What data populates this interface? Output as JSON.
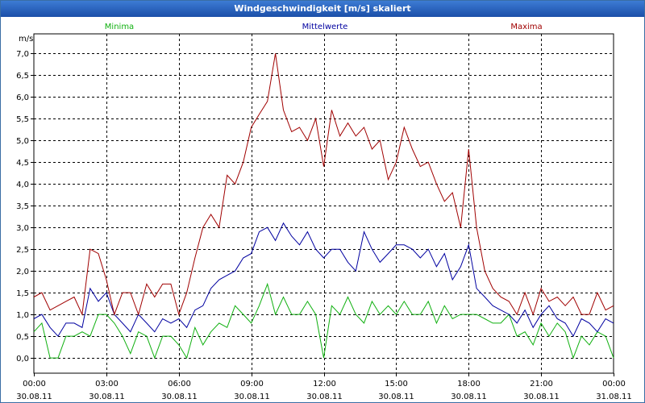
{
  "window": {
    "title": "Windgeschwindigkeit [m/s] skaliert"
  },
  "chart_data": {
    "type": "line",
    "title": "Windgeschwindigkeit [m/s] skaliert",
    "ylabel": "m/s",
    "ylim": [
      -0.35,
      7.45
    ],
    "xlim": [
      0,
      24
    ],
    "y_ticks": [
      "0,0",
      "0,5",
      "1,0",
      "1,5",
      "2,0",
      "2,5",
      "3,0",
      "3,5",
      "4,0",
      "4,5",
      "5,0",
      "5,5",
      "6,0",
      "6,5",
      "7,0"
    ],
    "x_ticks": [
      {
        "time": "00:00",
        "date": "30.08.11"
      },
      {
        "time": "03:00",
        "date": "30.08.11"
      },
      {
        "time": "06:00",
        "date": "30.08.11"
      },
      {
        "time": "09:00",
        "date": "30.08.11"
      },
      {
        "time": "12:00",
        "date": "30.08.11"
      },
      {
        "time": "15:00",
        "date": "30.08.11"
      },
      {
        "time": "18:00",
        "date": "30.08.11"
      },
      {
        "time": "21:00",
        "date": "30.08.11"
      },
      {
        "time": "00:00",
        "date": "31.08.11"
      }
    ],
    "grid": true,
    "legend_placement": "top",
    "series": [
      {
        "name": "Minima",
        "color": "#10b010",
        "x": [
          0,
          0.33,
          0.67,
          1,
          1.33,
          1.67,
          2,
          2.33,
          2.67,
          3,
          3.33,
          3.67,
          4,
          4.33,
          4.67,
          5,
          5.33,
          5.67,
          6,
          6.33,
          6.67,
          7,
          7.33,
          7.67,
          8,
          8.33,
          8.67,
          9,
          9.33,
          9.67,
          10,
          10.33,
          10.67,
          11,
          11.33,
          11.67,
          12,
          12.33,
          12.67,
          13,
          13.33,
          13.67,
          14,
          14.33,
          14.67,
          15,
          15.33,
          15.67,
          16,
          16.33,
          16.67,
          17,
          17.33,
          17.67,
          18,
          18.33,
          18.67,
          19,
          19.33,
          19.67,
          20,
          20.33,
          20.67,
          21,
          21.33,
          21.67,
          22,
          22.33,
          22.67,
          23,
          23.33,
          23.67,
          24
        ],
        "values": [
          0.6,
          0.8,
          0,
          0,
          0.5,
          0.5,
          0.6,
          0.5,
          1.0,
          1.0,
          0.8,
          0.5,
          0.1,
          0.6,
          0.5,
          0,
          0.5,
          0.5,
          0.3,
          0,
          0.7,
          0.3,
          0.6,
          0.8,
          0.7,
          1.2,
          1.0,
          0.8,
          1.2,
          1.7,
          1.0,
          1.4,
          1.0,
          1.0,
          1.3,
          1.0,
          0,
          1.2,
          1.0,
          1.4,
          1.0,
          0.8,
          1.3,
          1.0,
          1.2,
          1.0,
          1.3,
          1.0,
          1.0,
          1.3,
          0.8,
          1.2,
          0.9,
          1.0,
          1.0,
          1.0,
          0.9,
          0.8,
          0.8,
          1.0,
          0.5,
          0.6,
          0.3,
          0.8,
          0.5,
          0.8,
          0.6,
          0,
          0.5,
          0.3,
          0.6,
          0.5,
          0
        ]
      },
      {
        "name": "Mittelwerte",
        "color": "#0000a0",
        "x": [
          0,
          0.33,
          0.67,
          1,
          1.33,
          1.67,
          2,
          2.33,
          2.67,
          3,
          3.33,
          3.67,
          4,
          4.33,
          4.67,
          5,
          5.33,
          5.67,
          6,
          6.33,
          6.67,
          7,
          7.33,
          7.67,
          8,
          8.33,
          8.67,
          9,
          9.33,
          9.67,
          10,
          10.33,
          10.67,
          11,
          11.33,
          11.67,
          12,
          12.33,
          12.67,
          13,
          13.33,
          13.67,
          14,
          14.33,
          14.67,
          15,
          15.33,
          15.67,
          16,
          16.33,
          16.67,
          17,
          17.33,
          17.67,
          18,
          18.33,
          18.67,
          19,
          19.33,
          19.67,
          20,
          20.33,
          20.67,
          21,
          21.33,
          21.67,
          22,
          22.33,
          22.67,
          23,
          23.33,
          23.67,
          24
        ],
        "values": [
          0.9,
          1.0,
          0.7,
          0.5,
          0.8,
          0.8,
          0.7,
          1.6,
          1.3,
          1.5,
          1.0,
          0.8,
          0.6,
          1.0,
          0.8,
          0.6,
          0.9,
          0.8,
          0.9,
          0.7,
          1.1,
          1.2,
          1.6,
          1.8,
          1.9,
          2.0,
          2.3,
          2.4,
          2.9,
          3.0,
          2.7,
          3.1,
          2.8,
          2.6,
          2.9,
          2.5,
          2.3,
          2.5,
          2.5,
          2.2,
          2.0,
          2.9,
          2.5,
          2.2,
          2.4,
          2.6,
          2.6,
          2.5,
          2.3,
          2.5,
          2.1,
          2.4,
          1.8,
          2.1,
          2.6,
          1.6,
          1.4,
          1.2,
          1.1,
          1.0,
          0.8,
          1.1,
          0.7,
          1.0,
          1.2,
          0.9,
          0.8,
          0.5,
          0.9,
          0.8,
          0.6,
          0.9,
          0.8
        ]
      },
      {
        "name": "Maxima",
        "color": "#a00000",
        "x": [
          0,
          0.33,
          0.67,
          1,
          1.33,
          1.67,
          2,
          2.33,
          2.67,
          3,
          3.33,
          3.67,
          4,
          4.33,
          4.67,
          5,
          5.33,
          5.67,
          6,
          6.33,
          6.67,
          7,
          7.33,
          7.67,
          8,
          8.33,
          8.67,
          9,
          9.33,
          9.67,
          10,
          10.33,
          10.67,
          11,
          11.33,
          11.67,
          12,
          12.33,
          12.67,
          13,
          13.33,
          13.67,
          14,
          14.33,
          14.67,
          15,
          15.33,
          15.67,
          16,
          16.33,
          16.67,
          17,
          17.33,
          17.67,
          18,
          18.33,
          18.67,
          19,
          19.33,
          19.67,
          20,
          20.33,
          20.67,
          21,
          21.33,
          21.67,
          22,
          22.33,
          22.67,
          23,
          23.33,
          23.67,
          24
        ],
        "values": [
          1.4,
          1.5,
          1.1,
          1.2,
          1.3,
          1.4,
          1.0,
          2.5,
          2.4,
          1.8,
          1.0,
          1.5,
          1.5,
          1.0,
          1.7,
          1.4,
          1.7,
          1.7,
          1.0,
          1.5,
          2.3,
          3.0,
          3.3,
          3.0,
          4.2,
          4.0,
          4.5,
          5.3,
          5.6,
          5.9,
          7.0,
          5.7,
          5.2,
          5.3,
          5.0,
          5.5,
          4.4,
          5.7,
          5.1,
          5.4,
          5.1,
          5.3,
          4.8,
          5.0,
          4.1,
          4.5,
          5.3,
          4.8,
          4.4,
          4.5,
          4.0,
          3.6,
          3.8,
          3.0,
          4.8,
          3.0,
          2.0,
          1.6,
          1.4,
          1.3,
          1.0,
          1.5,
          1.0,
          1.6,
          1.3,
          1.4,
          1.2,
          1.4,
          1.0,
          1.0,
          1.5,
          1.1,
          1.2
        ]
      }
    ]
  }
}
